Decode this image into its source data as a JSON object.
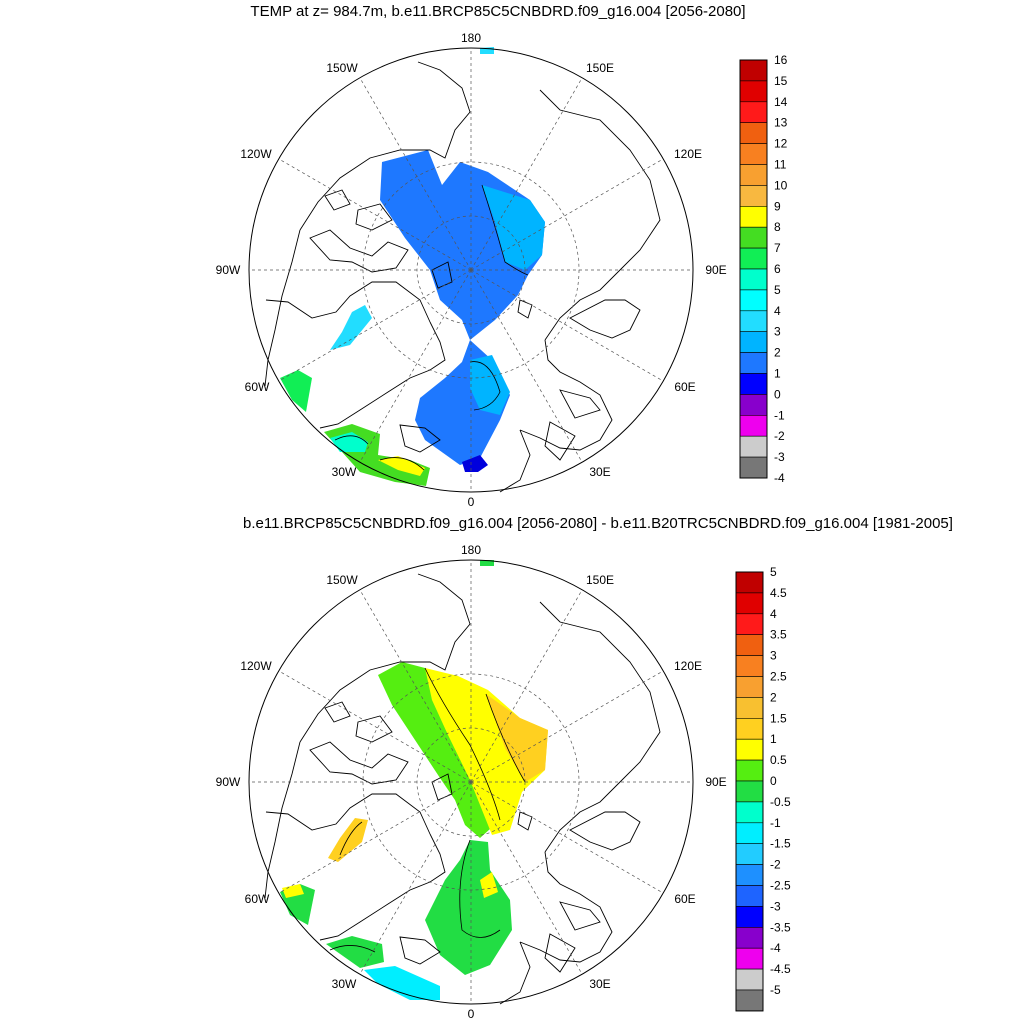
{
  "panels": [
    {
      "title": "TEMP at z= 984.7m, b.e11.BRCP85C5CNBDRD.f09_g16.004 [2056-2080]",
      "lon_labels": {
        "deg180": "180",
        "w150": "150W",
        "e150": "150E",
        "w120": "120W",
        "e120": "120E",
        "w90": "90W",
        "e90": "90E",
        "w60": "60W",
        "e60": "60E",
        "w30": "30W",
        "e30": "30E",
        "deg0": "0"
      },
      "colorbar": {
        "labels": [
          "16",
          "15",
          "14",
          "13",
          "12",
          "11",
          "10",
          "9",
          "8",
          "7",
          "6",
          "5",
          "4",
          "3",
          "2",
          "1",
          "0",
          "-1",
          "-2",
          "-3",
          "-4"
        ],
        "colors": [
          "#c00000",
          "#e00000",
          "#ff1a1a",
          "#f06010",
          "#f88020",
          "#f8a030",
          "#f8b840",
          "#ffff00",
          "#44dd22",
          "#11ee55",
          "#00ffcc",
          "#00ffff",
          "#22ddff",
          "#00b4ff",
          "#1e78ff",
          "#0000ff",
          "#8800cc",
          "#ee00ee",
          "#cccccc",
          "#777777"
        ]
      }
    },
    {
      "title": "b.e11.BRCP85C5CNBDRD.f09_g16.004 [2056-2080] - b.e11.B20TRC5CNBDRD.f09_g16.004 [1981-2005]",
      "lon_labels": {
        "deg180": "180",
        "w150": "150W",
        "e150": "150E",
        "w120": "120W",
        "e120": "120E",
        "w90": "90W",
        "e90": "90E",
        "w60": "60W",
        "e60": "60E",
        "w30": "30W",
        "e30": "30E",
        "deg0": "0"
      },
      "colorbar": {
        "labels": [
          "5",
          "4.5",
          "4",
          "3.5",
          "3",
          "2.5",
          "2",
          "1.5",
          "1",
          "0.5",
          "0",
          "-0.5",
          "-1",
          "-1.5",
          "-2",
          "-2.5",
          "-3",
          "-3.5",
          "-4",
          "-4.5",
          "-5"
        ],
        "colors": [
          "#c00000",
          "#e00000",
          "#ff1a1a",
          "#f06010",
          "#f88020",
          "#f8a030",
          "#f8c030",
          "#ffd020",
          "#ffff00",
          "#55ee11",
          "#22dd44",
          "#00ffcc",
          "#00eeff",
          "#22ccff",
          "#1e90ff",
          "#1e64ff",
          "#0000ff",
          "#8800cc",
          "#ee00ee",
          "#cccccc",
          "#777777"
        ]
      }
    }
  ],
  "map_colors": {
    "coast": "#000000",
    "grid": "#555555",
    "land_bg": "#ffffff"
  }
}
